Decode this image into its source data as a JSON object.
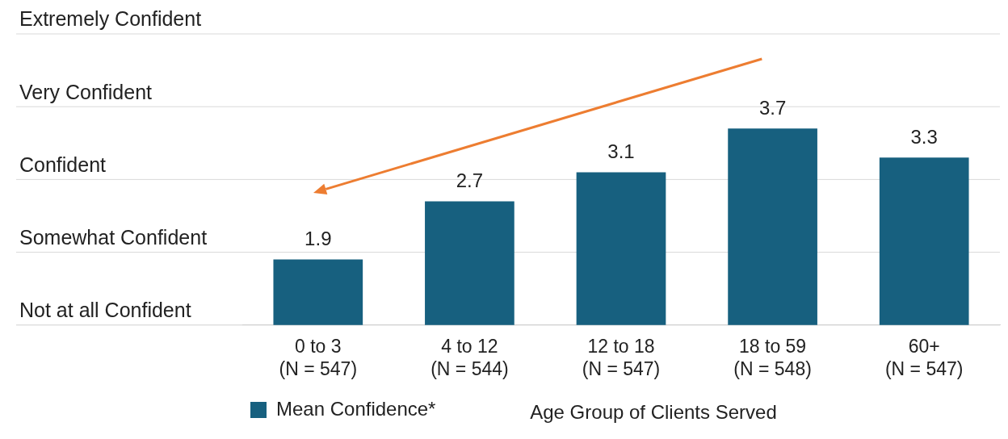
{
  "chart_data": {
    "type": "bar",
    "xlabel": "Age Group of Clients Served",
    "categories": [
      "0 to 3\n(N = 547)",
      "4 to 12\n(N = 544)",
      "12 to 18\n(N = 547)",
      "18 to 59\n(N = 548)",
      "60+\n(N = 547)"
    ],
    "series": [
      {
        "name": "Mean Confidence*",
        "color": "#17607f",
        "values": [
          1.9,
          2.7,
          3.1,
          3.7,
          3.3
        ]
      }
    ],
    "ylim": [
      1,
      5
    ],
    "ref_lines": [
      {
        "axis": "y",
        "value": 1,
        "label": "Not at all Confident",
        "color": "#d0d0d0"
      },
      {
        "axis": "y",
        "value": 2,
        "label": "Somewhat Confident",
        "color": "#d9d9d9"
      },
      {
        "axis": "y",
        "value": 3,
        "label": "Confident",
        "color": "#d9d9d9"
      },
      {
        "axis": "y",
        "value": 4,
        "label": "Very Confident",
        "color": "#d9d9d9"
      },
      {
        "axis": "y",
        "value": 5,
        "label": "Extremely Confident",
        "color": "#d9d9d9"
      }
    ],
    "legend": "bottom left",
    "data_labels": true
  }
}
